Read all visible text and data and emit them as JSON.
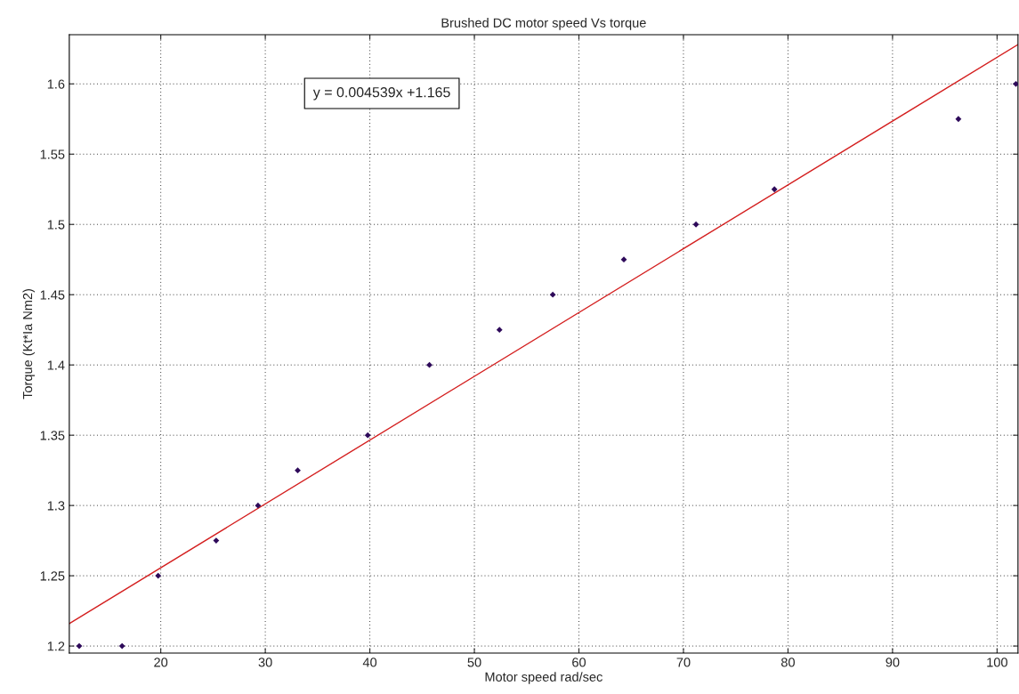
{
  "chart_data": {
    "type": "scatter",
    "title": "Brushed DC motor speed Vs torque",
    "xlabel": "Motor speed rad/sec",
    "ylabel": "Torque (Kt*Ia Nm2)",
    "series": [
      {
        "marker": "diamond",
        "color": "#2e0a5a",
        "x": [
          12.2,
          16.3,
          19.75,
          25.3,
          29.3,
          33.1,
          39.8,
          45.7,
          52.4,
          57.5,
          64.3,
          71.2,
          78.7,
          96.3,
          101.8
        ],
        "values": [
          1.2,
          1.2,
          1.25,
          1.275,
          1.3,
          1.325,
          1.35,
          1.4,
          1.425,
          1.45,
          1.475,
          1.5,
          1.525,
          1.575,
          1.6
        ]
      },
      {
        "type": "line",
        "marker": "none",
        "color": "#d42020",
        "x": [
          11.25,
          102
        ],
        "values": [
          1.216,
          1.628
        ]
      }
    ],
    "annotations": [
      "y = 0.004539x +1.165"
    ],
    "grid": true,
    "legend": false,
    "xlim": [
      11.25,
      102
    ],
    "xticks": [
      20,
      30,
      40,
      50,
      60,
      70,
      80,
      90,
      100
    ],
    "ylim": [
      1.195,
      1.635
    ],
    "yticks": [
      1.2,
      1.25,
      1.3,
      1.35,
      1.4,
      1.45,
      1.5,
      1.55,
      1.6
    ]
  }
}
